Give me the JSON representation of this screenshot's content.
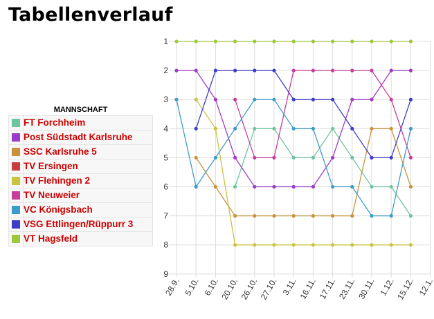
{
  "page": {
    "title": "Tabellenverlauf"
  },
  "legend": {
    "header": "MANNSCHAFT",
    "teams": [
      {
        "name": "FT Forchheim",
        "color": "#6cc59e"
      },
      {
        "name": "Post Südstadt Karlsruhe",
        "color": "#9b3cc8"
      },
      {
        "name": "SSC Karlsruhe 5",
        "color": "#c8923c"
      },
      {
        "name": "TV Ersingen",
        "color": "#c83c3c"
      },
      {
        "name": "TV Flehingen 2",
        "color": "#c8c43c"
      },
      {
        "name": "TV Neuweier",
        "color": "#c83c9b"
      },
      {
        "name": "VC Königsbach",
        "color": "#3c9bc8"
      },
      {
        "name": "VSG Ettlingen/Rüppurr 3",
        "color": "#3c3cc8"
      },
      {
        "name": "VT Hagsfeld",
        "color": "#9ec83c"
      }
    ]
  },
  "chart_data": {
    "type": "line",
    "categories": [
      "28.9.",
      "5.10.",
      "6.10.",
      "20.10.",
      "26.10.",
      "27.10.",
      "3.11.",
      "16.11.",
      "17.11.",
      "23.11.",
      "30.11.",
      "1.12.",
      "15.12.",
      "12.1."
    ],
    "y_ticks": [
      "1",
      "2",
      "3",
      "4",
      "5",
      "6",
      "7",
      "8",
      "9"
    ],
    "ylim": [
      1,
      9
    ],
    "y_inverted": true,
    "grid": true,
    "legend_position": "left",
    "series": [
      {
        "name": "FT Forchheim",
        "color": "#6cc59e",
        "values": [
          null,
          null,
          null,
          6,
          4,
          4,
          5,
          5,
          4,
          5,
          6,
          6,
          7,
          null
        ]
      },
      {
        "name": "Post Südstadt Karlsruhe",
        "color": "#9b3cc8",
        "values": [
          2,
          2,
          3,
          5,
          6,
          6,
          6,
          6,
          5,
          3,
          3,
          2,
          2,
          null
        ]
      },
      {
        "name": "SSC Karlsruhe 5",
        "color": "#c8923c",
        "values": [
          null,
          5,
          6,
          7,
          7,
          7,
          7,
          7,
          7,
          7,
          4,
          4,
          6,
          null
        ]
      },
      {
        "name": "TV Ersingen",
        "color": "#c83c3c",
        "values": [
          null,
          null,
          null,
          null,
          null,
          null,
          null,
          null,
          null,
          null,
          null,
          null,
          null,
          null
        ]
      },
      {
        "name": "TV Flehingen 2",
        "color": "#c8c43c",
        "values": [
          null,
          3,
          4,
          8,
          8,
          8,
          8,
          8,
          8,
          8,
          8,
          8,
          8,
          null
        ]
      },
      {
        "name": "TV Neuweier",
        "color": "#c83c9b",
        "values": [
          null,
          null,
          null,
          3,
          5,
          5,
          2,
          2,
          2,
          2,
          2,
          3,
          5,
          null
        ]
      },
      {
        "name": "VC Königsbach",
        "color": "#3c9bc8",
        "values": [
          3,
          6,
          5,
          4,
          3,
          3,
          4,
          4,
          6,
          6,
          7,
          7,
          4,
          null
        ]
      },
      {
        "name": "VSG Ettlingen/Rüppurr 3",
        "color": "#3c3cc8",
        "values": [
          null,
          4,
          2,
          2,
          2,
          2,
          3,
          3,
          3,
          4,
          5,
          5,
          3,
          null
        ]
      },
      {
        "name": "VT Hagsfeld",
        "color": "#9ec83c",
        "values": [
          1,
          1,
          1,
          1,
          1,
          1,
          1,
          1,
          1,
          1,
          1,
          1,
          1,
          null
        ]
      }
    ]
  }
}
